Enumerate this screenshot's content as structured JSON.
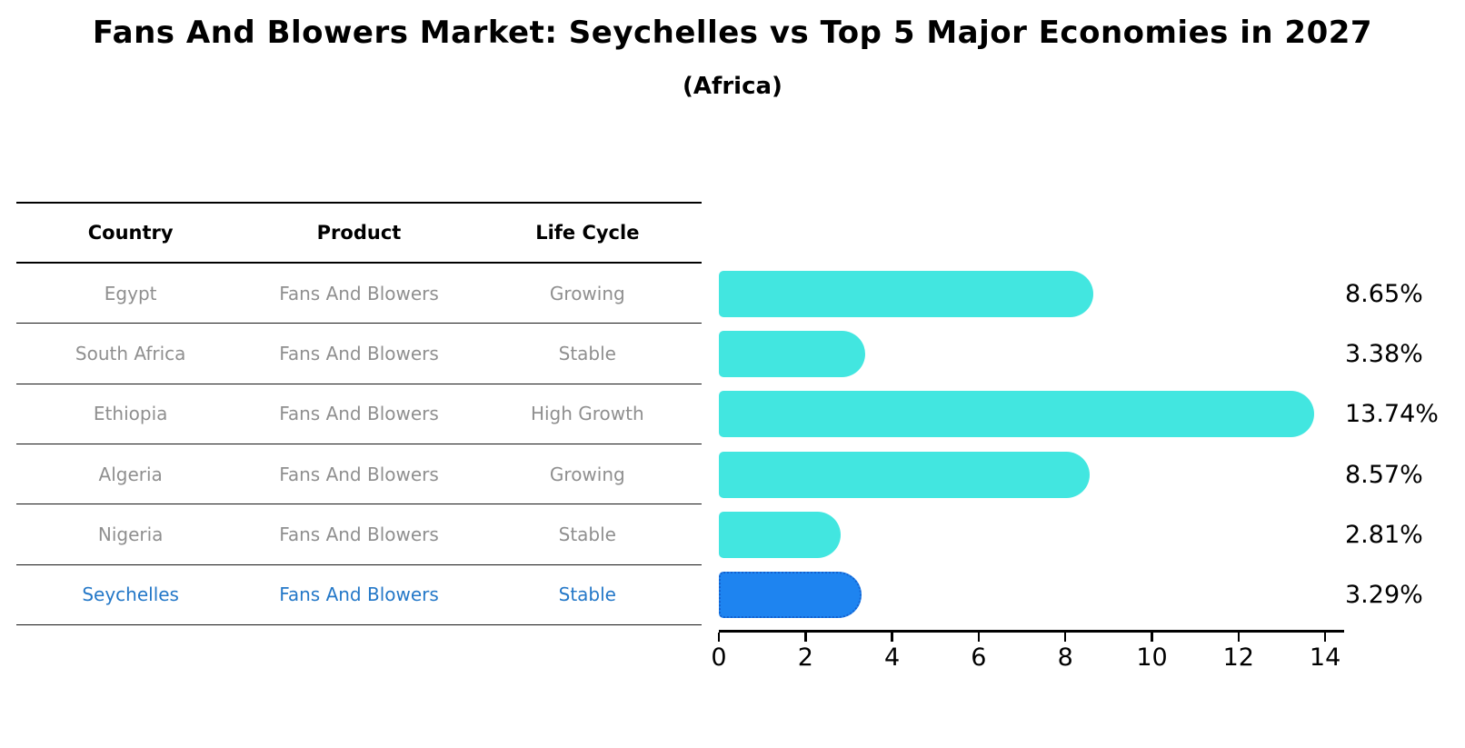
{
  "title": "Fans And Blowers Market: Seychelles vs Top 5 Major Economies in 2027",
  "subtitle": "(Africa)",
  "table": {
    "headers": {
      "country": "Country",
      "product": "Product",
      "life_cycle": "Life Cycle"
    },
    "rows": [
      {
        "country": "Egypt",
        "product": "Fans And Blowers",
        "life_cycle": "Growing"
      },
      {
        "country": "South Africa",
        "product": "Fans And Blowers",
        "life_cycle": "Stable"
      },
      {
        "country": "Ethiopia",
        "product": "Fans And Blowers",
        "life_cycle": "High Growth"
      },
      {
        "country": "Algeria",
        "product": "Fans And Blowers",
        "life_cycle": "Growing"
      },
      {
        "country": "Nigeria",
        "product": "Fans And Blowers",
        "life_cycle": "Stable"
      },
      {
        "country": "Seychelles",
        "product": "Fans And Blowers",
        "life_cycle": "Stable"
      }
    ]
  },
  "chart_data": {
    "type": "bar",
    "orientation": "horizontal",
    "title": "Fans And Blowers Market: Seychelles vs Top 5 Major Economies in 2027",
    "subtitle": "(Africa)",
    "categories": [
      "Egypt",
      "South Africa",
      "Ethiopia",
      "Algeria",
      "Nigeria",
      "Seychelles"
    ],
    "values": [
      8.65,
      3.38,
      13.74,
      8.57,
      2.81,
      3.29
    ],
    "labels": [
      "8.65%",
      "3.38%",
      "13.74%",
      "8.57%",
      "2.81%",
      "3.29%"
    ],
    "xticks": [
      0,
      2,
      4,
      6,
      8,
      10,
      12,
      14
    ],
    "xlim": [
      0,
      14.4
    ],
    "grid": false,
    "legend": false,
    "bar_color": "#42E6E0",
    "highlight_color": "#1E84F0",
    "highlight_border_color": "#1461CF",
    "highlight_index": 5,
    "highlight_text_color": "#2478C8"
  }
}
